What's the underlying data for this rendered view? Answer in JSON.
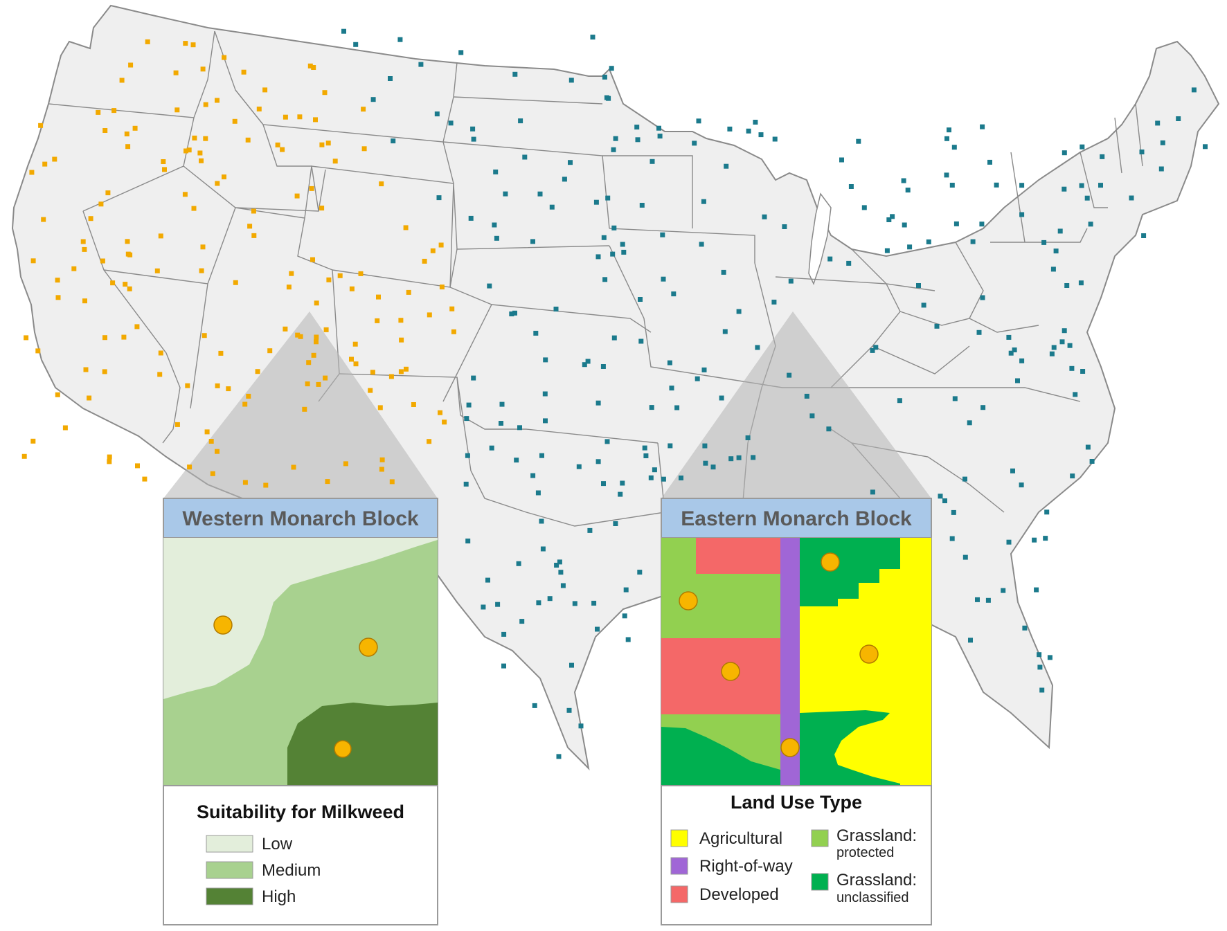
{
  "colors": {
    "map_fill": "#efefef",
    "border": "#8a8a8a",
    "western_site": "#f2a900",
    "eastern_site": "#1b7a8c",
    "panel_header": "#a9c8e8",
    "low": "#e3eedb",
    "medium": "#a8d18f",
    "high": "#548235",
    "agricultural": "#ffff00",
    "right_of_way": "#a066d6",
    "developed": "#f46868",
    "grassland_protected": "#92d050",
    "grassland_unclassified": "#00b050",
    "field_site": "#f7b500"
  },
  "western_panel": {
    "title": "Western Monarch Block",
    "legend_title": "Suitability for Milkweed",
    "legend": [
      {
        "label": "Low",
        "color_key": "low"
      },
      {
        "label": "Medium",
        "color_key": "medium"
      },
      {
        "label": "High",
        "color_key": "high"
      }
    ]
  },
  "eastern_panel": {
    "title": "Eastern Monarch Block",
    "legend_title": "Land Use Type",
    "legend": [
      {
        "label": "Agricultural",
        "color_key": "agricultural"
      },
      {
        "label": "Right-of-way",
        "color_key": "right_of_way"
      },
      {
        "label": "Developed",
        "color_key": "developed"
      },
      {
        "label_line1": "Grassland:",
        "label_line2": "protected",
        "color_key": "grassland_protected"
      },
      {
        "label_line1": "Grassland:",
        "label_line2": "unclassified",
        "color_key": "grassland_unclassified"
      }
    ]
  }
}
